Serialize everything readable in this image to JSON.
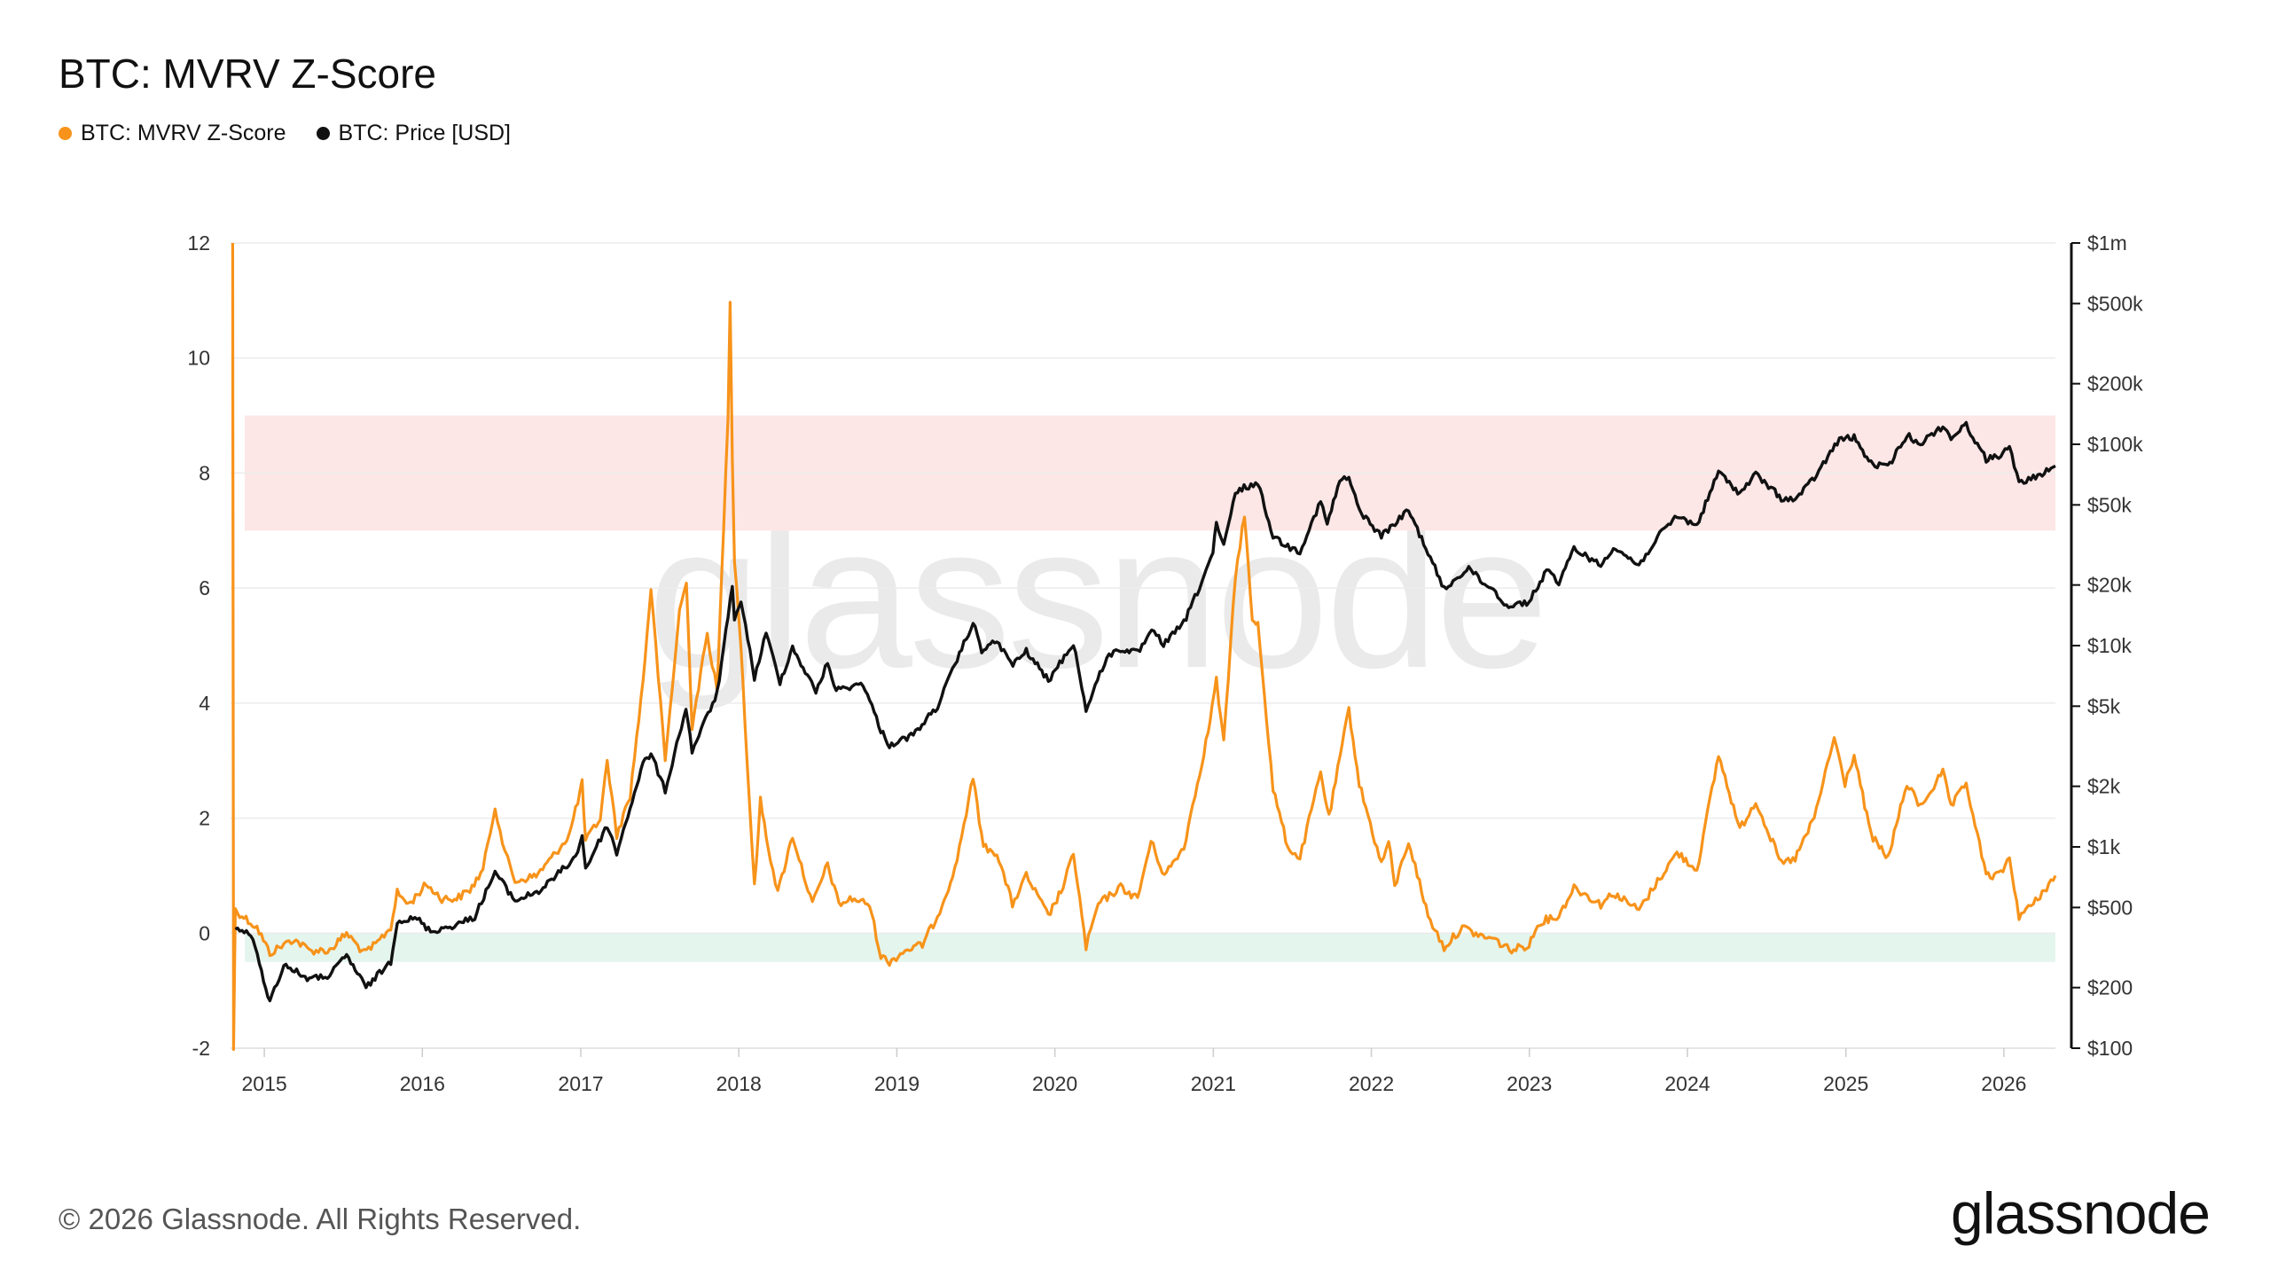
{
  "title": "BTC: MVRV Z-Score",
  "legend": [
    {
      "label": "BTC: MVRV Z-Score",
      "color": "#f7931a"
    },
    {
      "label": "BTC: Price [USD]",
      "color": "#111111"
    }
  ],
  "watermark": "glassnode",
  "footer": {
    "copyright": "© 2026 Glassnode. All Rights Reserved.",
    "logo": "glassnode"
  },
  "chart_data": {
    "type": "line",
    "x_range": [
      "2014-10-15",
      "2026-04-30"
    ],
    "x_ticks": [
      "2015",
      "2016",
      "2017",
      "2018",
      "2019",
      "2020",
      "2021",
      "2022",
      "2023",
      "2024",
      "2025",
      "2026"
    ],
    "left_axis": {
      "ylim": [
        -2,
        12
      ],
      "ticks": [
        "12",
        "10",
        "8",
        "6",
        "4",
        "2",
        "0",
        "-2"
      ]
    },
    "right_axis": {
      "scale": "log",
      "ylim": [
        100,
        1000000
      ],
      "ticks": [
        {
          "v": 1000000,
          "label": "$1m"
        },
        {
          "v": 500000,
          "label": "$500k"
        },
        {
          "v": 200000,
          "label": "$200k"
        },
        {
          "v": 100000,
          "label": "$100k"
        },
        {
          "v": 50000,
          "label": "$50k"
        },
        {
          "v": 20000,
          "label": "$20k"
        },
        {
          "v": 10000,
          "label": "$10k"
        },
        {
          "v": 5000,
          "label": "$5k"
        },
        {
          "v": 2000,
          "label": "$2k"
        },
        {
          "v": 1000,
          "label": "$1k"
        },
        {
          "v": 500,
          "label": "$500"
        },
        {
          "v": 200,
          "label": "$200"
        },
        {
          "v": 100,
          "label": "$100"
        }
      ]
    },
    "bands": [
      {
        "name": "red-zone",
        "from": 7,
        "to": 9,
        "color": "#fde6e6"
      },
      {
        "name": "green-zone",
        "from": -0.5,
        "to": 0,
        "color": "#e4f5ee"
      }
    ],
    "series": [
      {
        "name": "BTC: MVRV Z-Score",
        "color": "#f7931a",
        "axis": "left",
        "points": [
          [
            "2014-10-20",
            12.0
          ],
          [
            "2014-10-22",
            -2.0
          ],
          [
            "2014-10-26",
            0.4
          ],
          [
            "2014-12-15",
            0.1
          ],
          [
            "2015-01-14",
            -0.35
          ],
          [
            "2015-02-15",
            -0.2
          ],
          [
            "2015-03-10",
            -0.1
          ],
          [
            "2015-04-15",
            -0.3
          ],
          [
            "2015-06-01",
            -0.3
          ],
          [
            "2015-07-10",
            0.0
          ],
          [
            "2015-08-20",
            -0.35
          ],
          [
            "2015-09-15",
            -0.2
          ],
          [
            "2015-10-20",
            0.1
          ],
          [
            "2015-11-04",
            0.7
          ],
          [
            "2015-12-01",
            0.5
          ],
          [
            "2016-01-10",
            0.85
          ],
          [
            "2016-02-15",
            0.6
          ],
          [
            "2016-03-20",
            0.6
          ],
          [
            "2016-04-20",
            0.75
          ],
          [
            "2016-05-20",
            1.1
          ],
          [
            "2016-06-17",
            2.2
          ],
          [
            "2016-07-10",
            1.4
          ],
          [
            "2016-08-02",
            0.9
          ],
          [
            "2016-09-20",
            1.0
          ],
          [
            "2016-10-25",
            1.3
          ],
          [
            "2016-12-05",
            1.7
          ],
          [
            "2017-01-04",
            2.6
          ],
          [
            "2017-01-12",
            1.6
          ],
          [
            "2017-02-15",
            2.0
          ],
          [
            "2017-03-03",
            3.0
          ],
          [
            "2017-03-25",
            1.7
          ],
          [
            "2017-04-25",
            2.4
          ],
          [
            "2017-05-25",
            4.4
          ],
          [
            "2017-06-12",
            6.0
          ],
          [
            "2017-07-15",
            3.0
          ],
          [
            "2017-08-17",
            5.6
          ],
          [
            "2017-09-02",
            6.1
          ],
          [
            "2017-09-15",
            3.6
          ],
          [
            "2017-10-20",
            5.2
          ],
          [
            "2017-11-12",
            4.2
          ],
          [
            "2017-12-07",
            9.0
          ],
          [
            "2017-12-12",
            11.0
          ],
          [
            "2017-12-17",
            8.3
          ],
          [
            "2017-12-22",
            6.5
          ],
          [
            "2018-01-06",
            5.0
          ],
          [
            "2018-01-20",
            3.0
          ],
          [
            "2018-02-06",
            0.8
          ],
          [
            "2018-02-20",
            2.3
          ],
          [
            "2018-03-10",
            1.5
          ],
          [
            "2018-04-01",
            0.7
          ],
          [
            "2018-05-05",
            1.7
          ],
          [
            "2018-06-20",
            0.5
          ],
          [
            "2018-07-25",
            1.2
          ],
          [
            "2018-08-20",
            0.5
          ],
          [
            "2018-09-20",
            0.6
          ],
          [
            "2018-10-30",
            0.5
          ],
          [
            "2018-11-25",
            -0.4
          ],
          [
            "2018-12-15",
            -0.5
          ],
          [
            "2019-01-20",
            -0.3
          ],
          [
            "2019-03-01",
            -0.2
          ],
          [
            "2019-04-05",
            0.3
          ],
          [
            "2019-05-15",
            1.1
          ],
          [
            "2019-06-26",
            2.7
          ],
          [
            "2019-07-20",
            1.5
          ],
          [
            "2019-08-20",
            1.4
          ],
          [
            "2019-09-25",
            0.5
          ],
          [
            "2019-10-27",
            1.0
          ],
          [
            "2019-12-17",
            0.3
          ],
          [
            "2020-01-20",
            0.8
          ],
          [
            "2020-02-13",
            1.4
          ],
          [
            "2020-03-13",
            -0.25
          ],
          [
            "2020-04-10",
            0.5
          ],
          [
            "2020-06-01",
            0.8
          ],
          [
            "2020-07-10",
            0.6
          ],
          [
            "2020-08-10",
            1.6
          ],
          [
            "2020-09-10",
            1.0
          ],
          [
            "2020-10-25",
            1.5
          ],
          [
            "2020-11-25",
            2.6
          ],
          [
            "2020-12-20",
            3.5
          ],
          [
            "2021-01-08",
            4.4
          ],
          [
            "2021-01-25",
            3.3
          ],
          [
            "2021-02-21",
            6.2
          ],
          [
            "2021-03-14",
            7.3
          ],
          [
            "2021-04-01",
            5.4
          ],
          [
            "2021-04-14",
            5.4
          ],
          [
            "2021-05-19",
            2.5
          ],
          [
            "2021-06-22",
            1.5
          ],
          [
            "2021-07-20",
            1.3
          ],
          [
            "2021-09-06",
            2.8
          ],
          [
            "2021-09-25",
            2.0
          ],
          [
            "2021-11-10",
            3.9
          ],
          [
            "2021-12-04",
            2.6
          ],
          [
            "2022-01-24",
            1.2
          ],
          [
            "2022-02-10",
            1.6
          ],
          [
            "2022-02-24",
            0.8
          ],
          [
            "2022-03-28",
            1.6
          ],
          [
            "2022-05-12",
            0.3
          ],
          [
            "2022-06-18",
            -0.25
          ],
          [
            "2022-07-30",
            0.1
          ],
          [
            "2022-09-10",
            -0.05
          ],
          [
            "2022-10-10",
            -0.1
          ],
          [
            "2022-11-21",
            -0.3
          ],
          [
            "2022-12-31",
            -0.2
          ],
          [
            "2023-01-25",
            0.2
          ],
          [
            "2023-03-10",
            0.3
          ],
          [
            "2023-04-14",
            0.8
          ],
          [
            "2023-06-15",
            0.5
          ],
          [
            "2023-07-14",
            0.7
          ],
          [
            "2023-09-11",
            0.4
          ],
          [
            "2023-10-24",
            0.9
          ],
          [
            "2023-12-08",
            1.4
          ],
          [
            "2024-01-23",
            1.1
          ],
          [
            "2024-03-13",
            3.1
          ],
          [
            "2024-05-01",
            1.8
          ],
          [
            "2024-06-07",
            2.3
          ],
          [
            "2024-08-05",
            1.2
          ],
          [
            "2024-09-06",
            1.3
          ],
          [
            "2024-10-20",
            2.0
          ],
          [
            "2024-12-05",
            3.4
          ],
          [
            "2024-12-30",
            2.6
          ],
          [
            "2025-01-20",
            3.1
          ],
          [
            "2025-02-28",
            1.7
          ],
          [
            "2025-04-08",
            1.3
          ],
          [
            "2025-05-22",
            2.6
          ],
          [
            "2025-06-22",
            2.2
          ],
          [
            "2025-08-13",
            2.8
          ],
          [
            "2025-09-01",
            2.2
          ],
          [
            "2025-10-06",
            2.6
          ],
          [
            "2025-11-21",
            1.0
          ],
          [
            "2025-12-20",
            1.0
          ],
          [
            "2026-01-14",
            1.3
          ],
          [
            "2026-02-05",
            0.3
          ],
          [
            "2026-03-10",
            0.5
          ],
          [
            "2026-04-30",
            1.0
          ]
        ]
      },
      {
        "name": "BTC: Price [USD]",
        "color": "#111111",
        "axis": "right",
        "points": [
          [
            "2014-10-26",
            390
          ],
          [
            "2014-12-01",
            370
          ],
          [
            "2015-01-14",
            170
          ],
          [
            "2015-02-15",
            260
          ],
          [
            "2015-04-15",
            220
          ],
          [
            "2015-06-01",
            230
          ],
          [
            "2015-07-10",
            290
          ],
          [
            "2015-08-24",
            200
          ],
          [
            "2015-10-20",
            270
          ],
          [
            "2015-11-04",
            430
          ],
          [
            "2015-12-20",
            440
          ],
          [
            "2016-01-20",
            380
          ],
          [
            "2016-03-20",
            410
          ],
          [
            "2016-05-01",
            450
          ],
          [
            "2016-06-17",
            750
          ],
          [
            "2016-08-02",
            540
          ],
          [
            "2016-10-01",
            610
          ],
          [
            "2016-12-20",
            890
          ],
          [
            "2017-01-04",
            1140
          ],
          [
            "2017-01-12",
            780
          ],
          [
            "2017-03-03",
            1280
          ],
          [
            "2017-03-25",
            930
          ],
          [
            "2017-05-25",
            2600
          ],
          [
            "2017-06-12",
            2900
          ],
          [
            "2017-07-15",
            1900
          ],
          [
            "2017-09-01",
            4900
          ],
          [
            "2017-09-15",
            3000
          ],
          [
            "2017-11-12",
            5800
          ],
          [
            "2017-12-17",
            19500
          ],
          [
            "2017-12-22",
            13000
          ],
          [
            "2018-01-06",
            17000
          ],
          [
            "2018-02-06",
            6900
          ],
          [
            "2018-03-05",
            11500
          ],
          [
            "2018-04-06",
            6600
          ],
          [
            "2018-05-05",
            9800
          ],
          [
            "2018-06-28",
            5900
          ],
          [
            "2018-07-25",
            8200
          ],
          [
            "2018-08-14",
            6000
          ],
          [
            "2018-10-15",
            6500
          ],
          [
            "2018-11-25",
            3800
          ],
          [
            "2018-12-15",
            3200
          ],
          [
            "2019-02-08",
            3600
          ],
          [
            "2019-04-05",
            5000
          ],
          [
            "2019-05-15",
            8000
          ],
          [
            "2019-06-26",
            13000
          ],
          [
            "2019-07-16",
            9500
          ],
          [
            "2019-08-20",
            10500
          ],
          [
            "2019-09-26",
            8000
          ],
          [
            "2019-10-27",
            9400
          ],
          [
            "2019-12-17",
            6700
          ],
          [
            "2020-02-13",
            10300
          ],
          [
            "2020-03-13",
            4800
          ],
          [
            "2020-04-30",
            8800
          ],
          [
            "2020-06-01",
            9600
          ],
          [
            "2020-07-10",
            9200
          ],
          [
            "2020-08-17",
            12000
          ],
          [
            "2020-09-08",
            10100
          ],
          [
            "2020-10-25",
            13000
          ],
          [
            "2020-11-30",
            19500
          ],
          [
            "2020-12-31",
            29000
          ],
          [
            "2021-01-08",
            40000
          ],
          [
            "2021-01-25",
            31000
          ],
          [
            "2021-02-21",
            57000
          ],
          [
            "2021-03-13",
            61000
          ],
          [
            "2021-04-14",
            64000
          ],
          [
            "2021-05-19",
            35000
          ],
          [
            "2021-06-22",
            31000
          ],
          [
            "2021-07-20",
            29500
          ],
          [
            "2021-09-06",
            52000
          ],
          [
            "2021-09-21",
            40000
          ],
          [
            "2021-10-20",
            66000
          ],
          [
            "2021-11-10",
            68000
          ],
          [
            "2021-12-04",
            47000
          ],
          [
            "2022-01-24",
            35000
          ],
          [
            "2022-03-28",
            47000
          ],
          [
            "2022-05-12",
            29000
          ],
          [
            "2022-06-18",
            19000
          ],
          [
            "2022-08-14",
            24500
          ],
          [
            "2022-09-10",
            21000
          ],
          [
            "2022-10-10",
            19000
          ],
          [
            "2022-11-09",
            15700
          ],
          [
            "2022-12-31",
            16500
          ],
          [
            "2023-02-15",
            24500
          ],
          [
            "2023-03-10",
            20000
          ],
          [
            "2023-04-14",
            30500
          ],
          [
            "2023-06-15",
            25000
          ],
          [
            "2023-07-14",
            31000
          ],
          [
            "2023-09-11",
            25000
          ],
          [
            "2023-10-24",
            34500
          ],
          [
            "2023-12-08",
            44000
          ],
          [
            "2024-01-23",
            39500
          ],
          [
            "2024-03-13",
            73000
          ],
          [
            "2024-05-01",
            57000
          ],
          [
            "2024-06-07",
            71000
          ],
          [
            "2024-08-05",
            54000
          ],
          [
            "2024-09-06",
            53000
          ],
          [
            "2024-10-20",
            68000
          ],
          [
            "2024-12-17",
            106000
          ],
          [
            "2025-01-20",
            108000
          ],
          [
            "2025-02-28",
            80000
          ],
          [
            "2025-04-08",
            77000
          ],
          [
            "2025-05-22",
            111000
          ],
          [
            "2025-06-22",
            101000
          ],
          [
            "2025-08-13",
            123000
          ],
          [
            "2025-09-01",
            108000
          ],
          [
            "2025-10-06",
            125000
          ],
          [
            "2025-11-21",
            84000
          ],
          [
            "2025-12-20",
            88000
          ],
          [
            "2026-01-14",
            96000
          ],
          [
            "2026-02-05",
            64000
          ],
          [
            "2026-03-10",
            68000
          ],
          [
            "2026-04-30",
            78000
          ]
        ]
      }
    ]
  }
}
